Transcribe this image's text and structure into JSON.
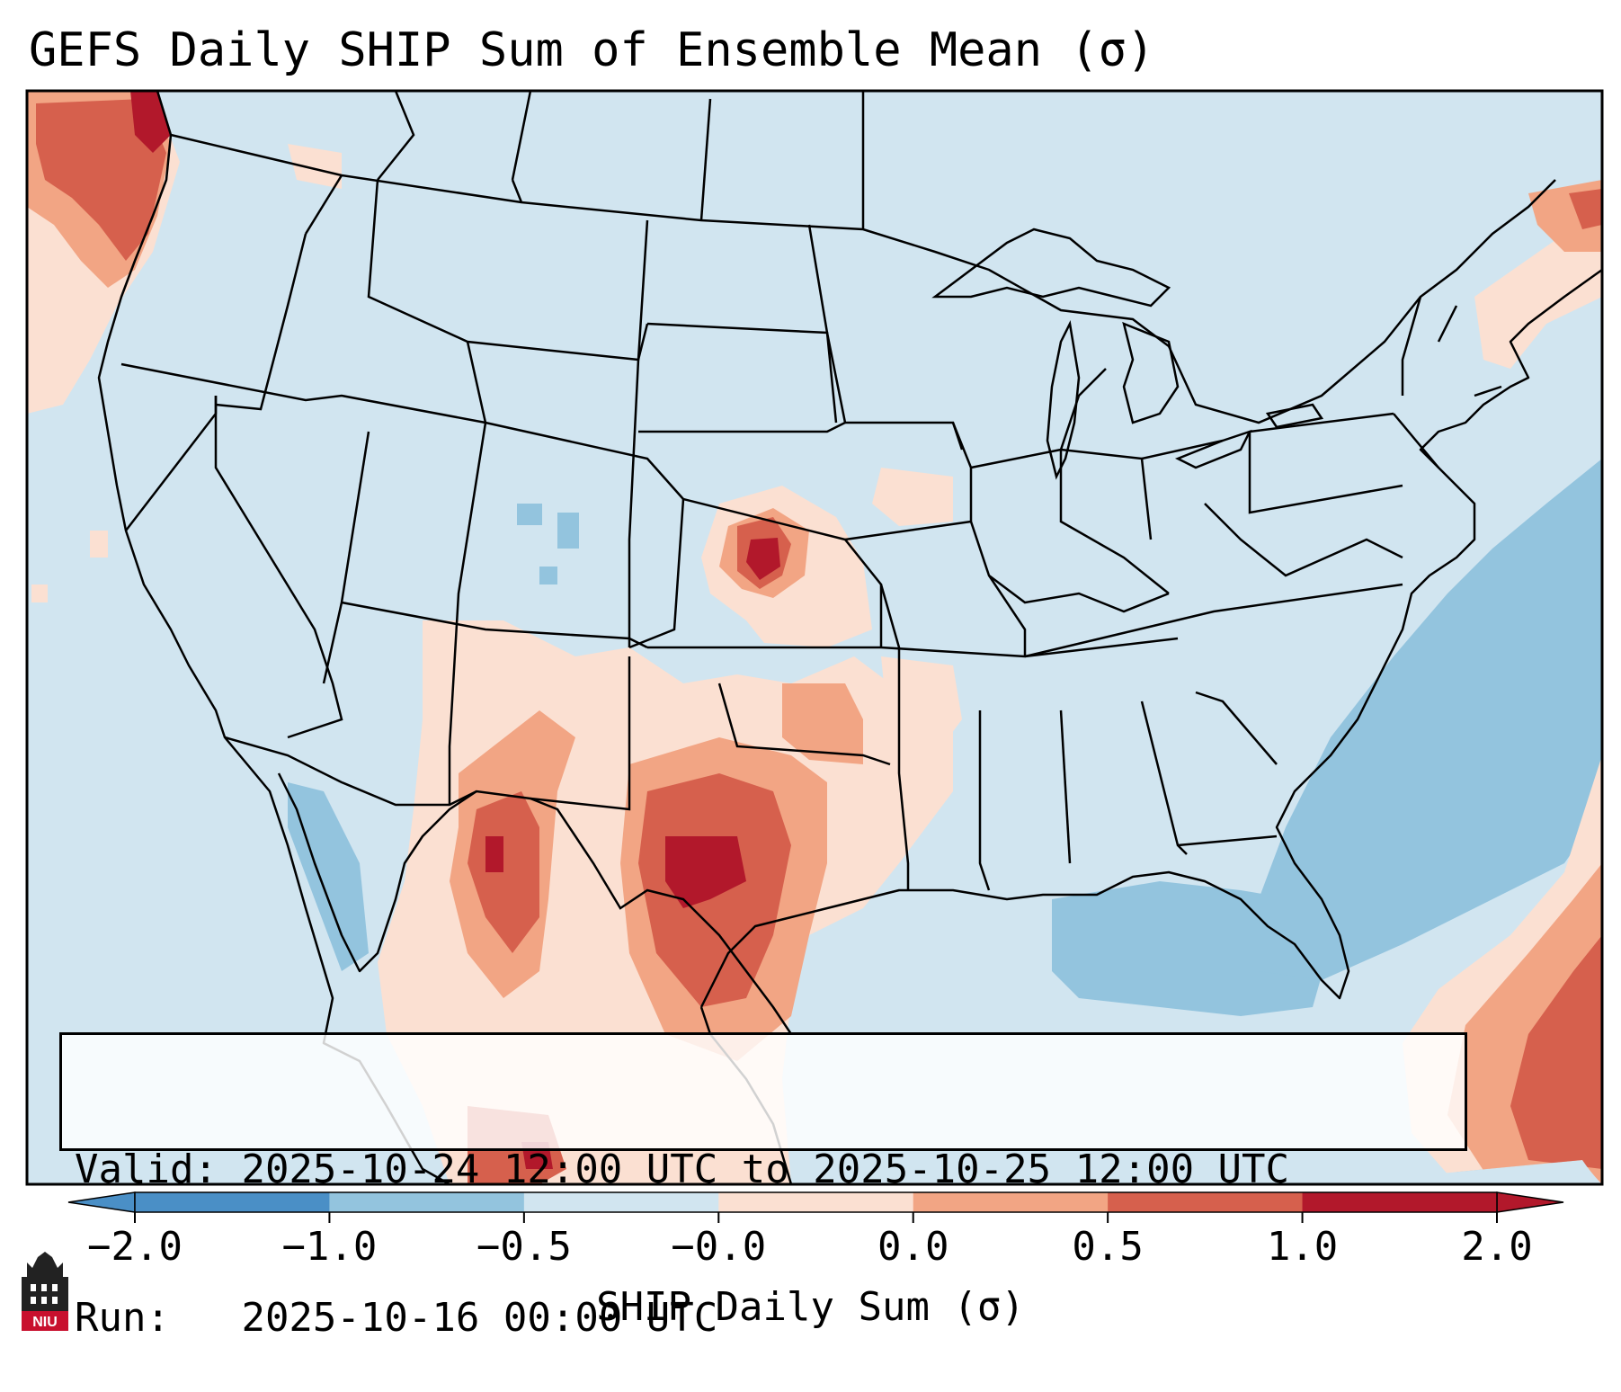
{
  "title": "GEFS Daily SHIP Sum of Ensemble Mean (σ)",
  "info": {
    "valid_label": "Valid:",
    "valid_value": "2025-10-24 12:00 UTC to 2025-10-25 12:00 UTC",
    "run_label": "Run:",
    "run_value": "2025-10-16 00:00 UTC"
  },
  "colorbar": {
    "label": "SHIP Daily Sum (σ)",
    "ticks": [
      "−2.0",
      "−1.0",
      "−0.5",
      "−0.0",
      "0.0",
      "0.5",
      "1.0",
      "2.0"
    ],
    "colors": [
      "#4a8fc6",
      "#93c4de",
      "#d1e5f0",
      "#fbe0d2",
      "#f2a584",
      "#d6604d",
      "#b2182b"
    ],
    "extend": "both"
  },
  "map": {
    "projection": "Lambert conformal",
    "region": "Contiguous United States",
    "background_color": "#d1e5f0",
    "anomaly_regions": [
      {
        "area": "Pacific Northwest coast",
        "level": "1.0 to 2.0"
      },
      {
        "area": "Central Kansas",
        "level": "1.0 to 2.0"
      },
      {
        "area": "Central Texas",
        "level": "1.0 to 2.0"
      },
      {
        "area": "Southern New Mexico / Chihuahua",
        "level": "1.0 to 2.0"
      },
      {
        "area": "Western Atlantic",
        "level": "-1.0 to -0.5"
      },
      {
        "area": "Gulf of Mexico",
        "level": "-1.0 to -0.5"
      }
    ]
  },
  "logo": {
    "text": "NIU",
    "description": "Northern Illinois University logo"
  }
}
